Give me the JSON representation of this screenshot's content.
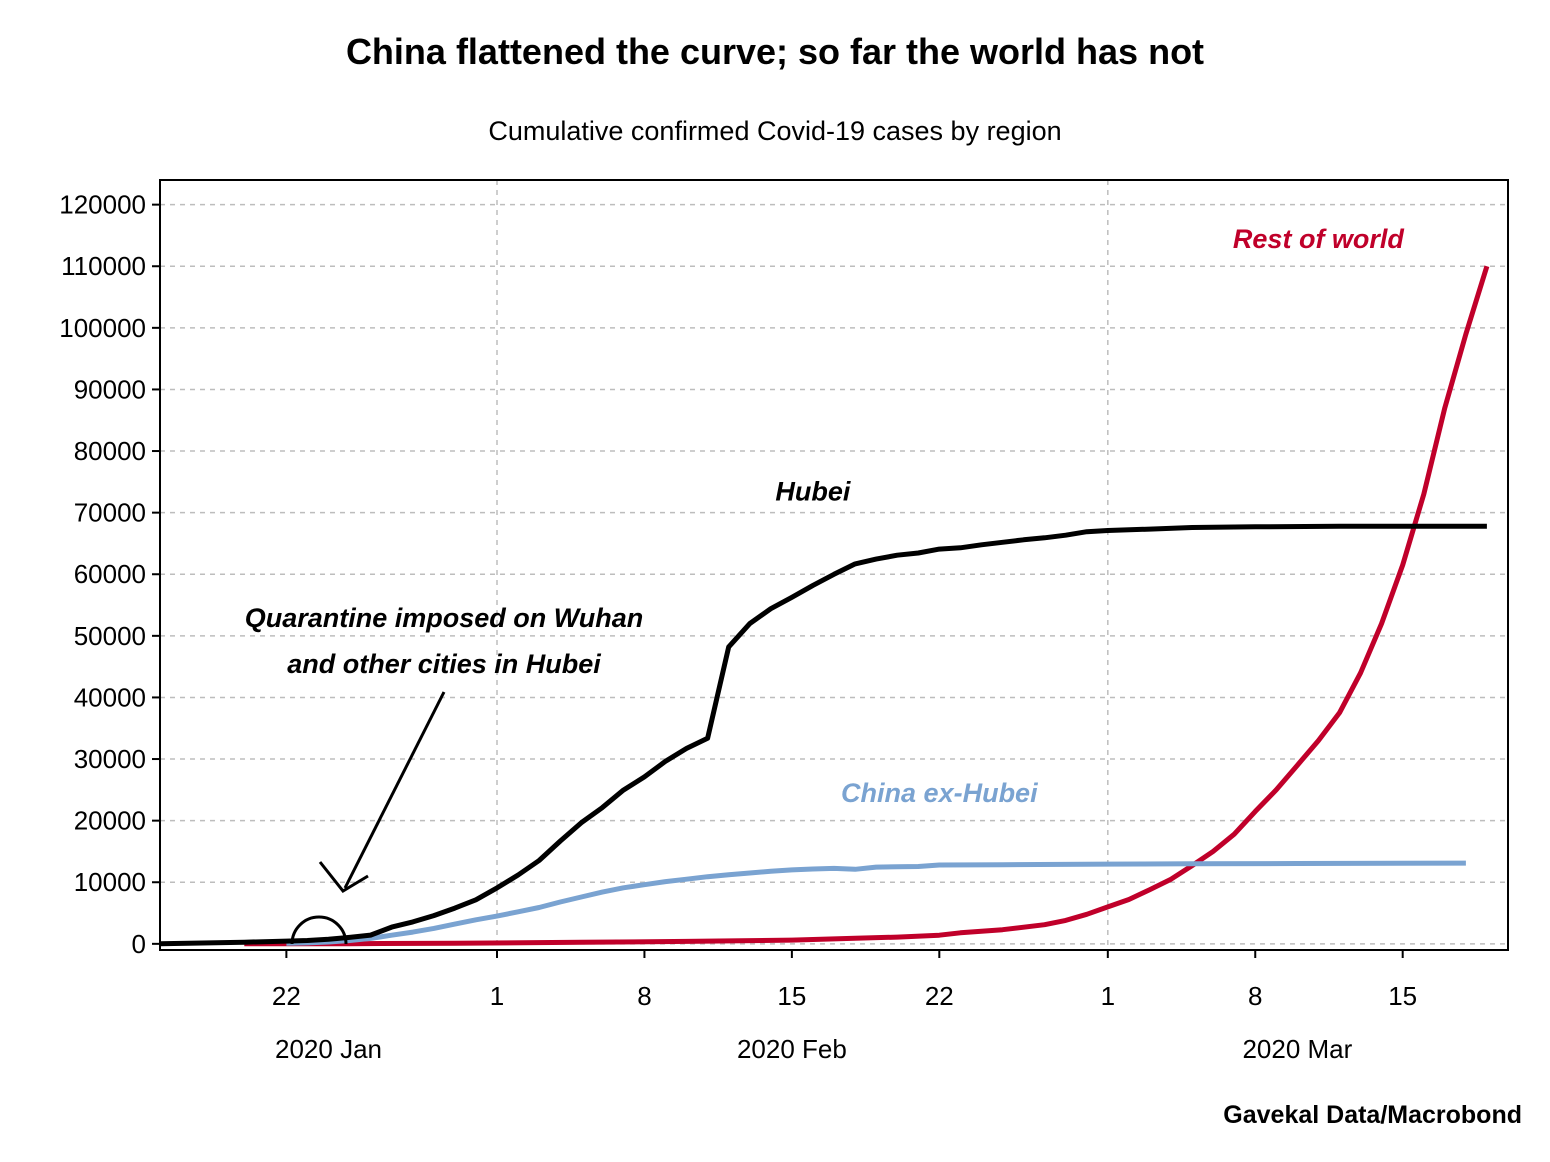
{
  "chart_data": {
    "type": "line",
    "title": "China flattened the curve; so far the world has not",
    "subtitle": "Cumulative confirmed Covid-19 cases by region",
    "source": "Gavekal Data/Macrobond",
    "xlabel": "",
    "ylabel": "",
    "x_range": [
      "2020-01-16",
      "2020-03-20"
    ],
    "ylim": [
      -1000,
      124000
    ],
    "y_ticks": [
      0,
      10000,
      20000,
      30000,
      40000,
      50000,
      60000,
      70000,
      80000,
      90000,
      100000,
      110000,
      120000
    ],
    "x_ticks": [
      {
        "date": "2020-01-22",
        "label": "22"
      },
      {
        "date": "2020-02-01",
        "label": "1"
      },
      {
        "date": "2020-02-08",
        "label": "8"
      },
      {
        "date": "2020-02-15",
        "label": "15"
      },
      {
        "date": "2020-02-22",
        "label": "22"
      },
      {
        "date": "2020-03-01",
        "label": "1"
      },
      {
        "date": "2020-03-08",
        "label": "8"
      },
      {
        "date": "2020-03-15",
        "label": "15"
      }
    ],
    "month_labels": [
      {
        "date": "2020-01-24",
        "label": "2020 Jan"
      },
      {
        "date": "2020-02-15",
        "label": "2020 Feb"
      },
      {
        "date": "2020-03-10",
        "label": "2020 Mar"
      }
    ],
    "month_gridlines": [
      "2020-02-01",
      "2020-03-01"
    ],
    "grid": true,
    "series": [
      {
        "name": "Hubei",
        "color": "#000000",
        "label_anchor": {
          "date": "2020-02-16",
          "value": 72000
        },
        "points": [
          [
            "2020-01-16",
            0
          ],
          [
            "2020-01-20",
            270
          ],
          [
            "2020-01-22",
            444
          ],
          [
            "2020-01-23",
            549
          ],
          [
            "2020-01-24",
            729
          ],
          [
            "2020-01-25",
            1052
          ],
          [
            "2020-01-26",
            1423
          ],
          [
            "2020-01-27",
            2714
          ],
          [
            "2020-01-28",
            3554
          ],
          [
            "2020-01-29",
            4586
          ],
          [
            "2020-01-30",
            5806
          ],
          [
            "2020-01-31",
            7153
          ],
          [
            "2020-02-01",
            9074
          ],
          [
            "2020-02-02",
            11177
          ],
          [
            "2020-02-03",
            13522
          ],
          [
            "2020-02-04",
            16678
          ],
          [
            "2020-02-05",
            19665
          ],
          [
            "2020-02-06",
            22112
          ],
          [
            "2020-02-07",
            24953
          ],
          [
            "2020-02-08",
            27100
          ],
          [
            "2020-02-09",
            29631
          ],
          [
            "2020-02-10",
            31728
          ],
          [
            "2020-02-11",
            33366
          ],
          [
            "2020-02-12",
            48206
          ],
          [
            "2020-02-13",
            51986
          ],
          [
            "2020-02-14",
            54406
          ],
          [
            "2020-02-15",
            56249
          ],
          [
            "2020-02-16",
            58182
          ],
          [
            "2020-02-17",
            59989
          ],
          [
            "2020-02-18",
            61682
          ],
          [
            "2020-02-19",
            62457
          ],
          [
            "2020-02-20",
            63088
          ],
          [
            "2020-02-21",
            63454
          ],
          [
            "2020-02-22",
            64084
          ],
          [
            "2020-02-23",
            64287
          ],
          [
            "2020-02-24",
            64786
          ],
          [
            "2020-02-25",
            65187
          ],
          [
            "2020-02-26",
            65596
          ],
          [
            "2020-02-27",
            65914
          ],
          [
            "2020-02-28",
            66337
          ],
          [
            "2020-02-29",
            66907
          ],
          [
            "2020-03-01",
            67103
          ],
          [
            "2020-03-03",
            67332
          ],
          [
            "2020-03-05",
            67592
          ],
          [
            "2020-03-08",
            67707
          ],
          [
            "2020-03-12",
            67781
          ],
          [
            "2020-03-16",
            67799
          ],
          [
            "2020-03-19",
            67800
          ]
        ]
      },
      {
        "name": "China ex-Hubei",
        "color": "#7aa3d1",
        "label_anchor": {
          "date": "2020-02-22",
          "value": 23000
        },
        "points": [
          [
            "2020-01-22",
            100
          ],
          [
            "2020-01-23",
            150
          ],
          [
            "2020-01-24",
            300
          ],
          [
            "2020-01-25",
            540
          ],
          [
            "2020-01-26",
            890
          ],
          [
            "2020-01-27",
            1400
          ],
          [
            "2020-01-28",
            1900
          ],
          [
            "2020-01-29",
            2500
          ],
          [
            "2020-01-30",
            3200
          ],
          [
            "2020-01-31",
            3900
          ],
          [
            "2020-02-01",
            4500
          ],
          [
            "2020-02-02",
            5200
          ],
          [
            "2020-02-03",
            5900
          ],
          [
            "2020-02-04",
            6800
          ],
          [
            "2020-02-05",
            7600
          ],
          [
            "2020-02-06",
            8400
          ],
          [
            "2020-02-07",
            9100
          ],
          [
            "2020-02-08",
            9600
          ],
          [
            "2020-02-09",
            10100
          ],
          [
            "2020-02-10",
            10500
          ],
          [
            "2020-02-11",
            10900
          ],
          [
            "2020-02-12",
            11200
          ],
          [
            "2020-02-13",
            11500
          ],
          [
            "2020-02-14",
            11800
          ],
          [
            "2020-02-15",
            12000
          ],
          [
            "2020-02-16",
            12150
          ],
          [
            "2020-02-17",
            12250
          ],
          [
            "2020-02-18",
            12100
          ],
          [
            "2020-02-19",
            12450
          ],
          [
            "2020-02-20",
            12500
          ],
          [
            "2020-02-21",
            12550
          ],
          [
            "2020-02-22",
            12800
          ],
          [
            "2020-02-25",
            12850
          ],
          [
            "2020-03-01",
            12950
          ],
          [
            "2020-03-05",
            13000
          ],
          [
            "2020-03-10",
            13050
          ],
          [
            "2020-03-18",
            13100
          ]
        ]
      },
      {
        "name": "Rest of world",
        "color": "#c0002a",
        "label_anchor": {
          "date": "2020-03-11",
          "value": 113000
        },
        "points": [
          [
            "2020-01-20",
            4
          ],
          [
            "2020-01-25",
            30
          ],
          [
            "2020-01-30",
            100
          ],
          [
            "2020-02-05",
            250
          ],
          [
            "2020-02-10",
            400
          ],
          [
            "2020-02-15",
            600
          ],
          [
            "2020-02-18",
            900
          ],
          [
            "2020-02-20",
            1100
          ],
          [
            "2020-02-22",
            1400
          ],
          [
            "2020-02-23",
            1800
          ],
          [
            "2020-02-25",
            2300
          ],
          [
            "2020-02-27",
            3100
          ],
          [
            "2020-02-28",
            3800
          ],
          [
            "2020-02-29",
            4800
          ],
          [
            "2020-03-01",
            6000
          ],
          [
            "2020-03-02",
            7200
          ],
          [
            "2020-03-03",
            8800
          ],
          [
            "2020-03-04",
            10500
          ],
          [
            "2020-03-05",
            12700
          ],
          [
            "2020-03-06",
            15000
          ],
          [
            "2020-03-07",
            17800
          ],
          [
            "2020-03-08",
            21500
          ],
          [
            "2020-03-09",
            25000
          ],
          [
            "2020-03-10",
            29000
          ],
          [
            "2020-03-11",
            33000
          ],
          [
            "2020-03-12",
            37500
          ],
          [
            "2020-03-13",
            44000
          ],
          [
            "2020-03-14",
            52000
          ],
          [
            "2020-03-15",
            61500
          ],
          [
            "2020-03-16",
            73000
          ],
          [
            "2020-03-17",
            87000
          ],
          [
            "2020-03-18",
            99000
          ],
          [
            "2020-03-19",
            110000
          ]
        ]
      }
    ],
    "annotations": [
      {
        "text_lines": [
          "Quarantine imposed on Wuhan",
          "and other cities in Hubei"
        ],
        "marker": "circle",
        "marker_date": "2020-01-23",
        "marker_value": 1500
      }
    ]
  }
}
